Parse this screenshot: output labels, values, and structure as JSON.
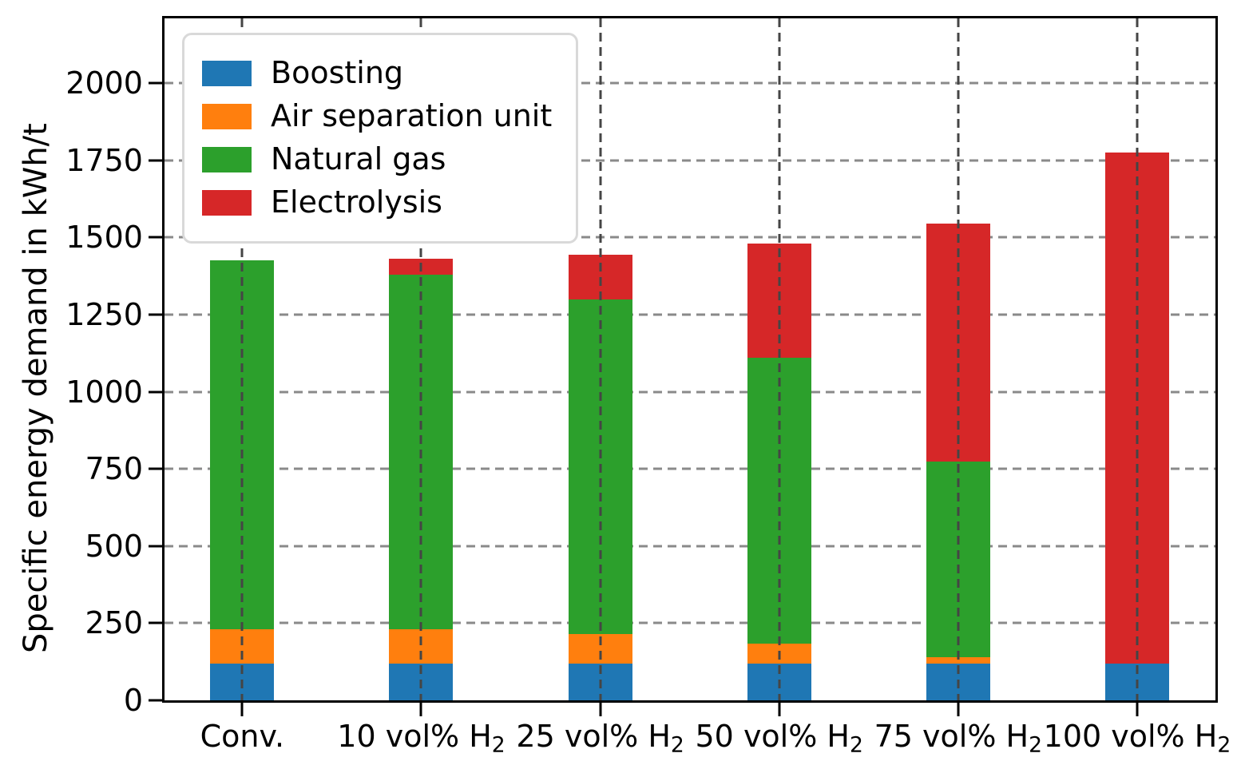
{
  "figure": {
    "background": "#ffffff",
    "axis_color": "#000000",
    "grid_color_horizontal": "#8a8a8a",
    "grid_color_vertical": "#454545",
    "legend_border_color": "#d9d9d9",
    "legend_background": "#ffffff"
  },
  "chart_data": {
    "type": "bar",
    "stacked": true,
    "title": "",
    "xlabel": "",
    "ylabel": "Specific energy demand in kWh/t",
    "ylim": [
      0,
      2210
    ],
    "yticks": [
      0,
      250,
      500,
      750,
      1000,
      1250,
      1500,
      1750,
      2000
    ],
    "grid": "dashed",
    "legend_position": "upper left",
    "categories": [
      "Conv.",
      "10 vol% H2",
      "25 vol% H2",
      "50 vol% H2",
      "75 vol% H2",
      "100 vol% H2"
    ],
    "x_labels": [
      {
        "base": "Conv.",
        "sub": ""
      },
      {
        "base": "10 vol% H",
        "sub": "2"
      },
      {
        "base": "25 vol% H",
        "sub": "2"
      },
      {
        "base": "50 vol% H",
        "sub": "2"
      },
      {
        "base": "75 vol% H",
        "sub": "2"
      },
      {
        "base": "100 vol% H",
        "sub": "2"
      }
    ],
    "series": [
      {
        "name": "Boosting",
        "color": "#1f77b4",
        "values": [
          120,
          120,
          120,
          120,
          120,
          120
        ]
      },
      {
        "name": "Air separation unit",
        "color": "#ff7f0e",
        "values": [
          110,
          110,
          95,
          65,
          20,
          0
        ]
      },
      {
        "name": "Natural gas",
        "color": "#2ca02c",
        "values": [
          1195,
          1150,
          1085,
          925,
          635,
          0
        ]
      },
      {
        "name": "Electrolysis",
        "color": "#d62728",
        "values": [
          0,
          50,
          145,
          370,
          770,
          1655
        ]
      }
    ],
    "totals": [
      1425,
      1430,
      1445,
      1480,
      1545,
      1775
    ]
  }
}
